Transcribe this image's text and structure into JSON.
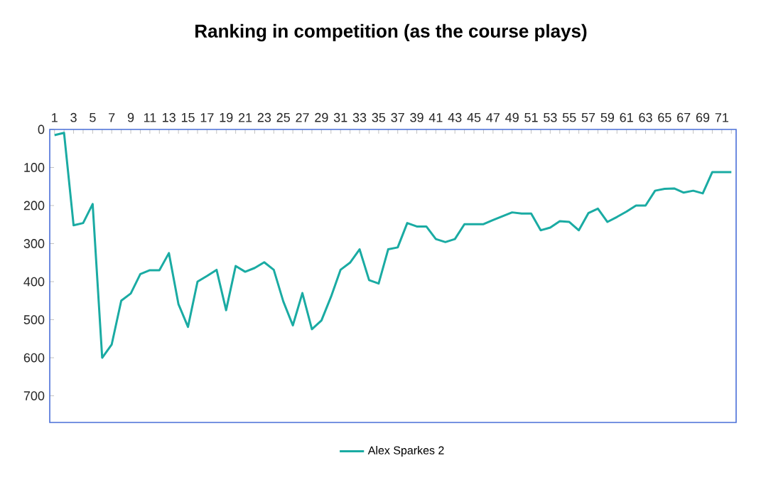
{
  "chart_data": {
    "type": "line",
    "title": "Ranking in competition (as the course plays)",
    "categories": [
      "1",
      null,
      "3",
      null,
      "5",
      null,
      "7",
      null,
      "9",
      null,
      "11",
      null,
      "13",
      null,
      "15",
      null,
      "17",
      null,
      "19",
      null,
      "21",
      null,
      "23",
      null,
      "25",
      null,
      "27",
      null,
      "29",
      null,
      "31",
      null,
      "33",
      null,
      "35",
      null,
      "37",
      null,
      "39",
      null,
      "41",
      null,
      "43",
      null,
      "45",
      null,
      "47",
      null,
      "49",
      null,
      "51",
      null,
      "53",
      null,
      "55",
      null,
      "57",
      null,
      "59",
      null,
      "61",
      null,
      "63",
      null,
      "65",
      null,
      "67",
      null,
      "69",
      null,
      "71",
      null
    ],
    "series": [
      {
        "name": "Alex Sparkes 2",
        "color": "#1aaba3",
        "values": [
          15,
          9,
          252,
          246,
          196,
          600,
          565,
          450,
          431,
          380,
          370,
          370,
          325,
          459,
          519,
          400,
          385,
          369,
          475,
          359,
          374,
          364,
          349,
          369,
          452,
          515,
          430,
          525,
          502,
          440,
          369,
          350,
          315,
          396,
          405,
          315,
          310,
          246,
          255,
          255,
          288,
          296,
          288,
          249,
          249,
          249,
          238,
          228,
          218,
          221,
          221,
          265,
          258,
          241,
          243,
          265,
          220,
          208,
          243,
          230,
          216,
          200,
          200,
          161,
          156,
          155,
          166,
          161,
          168,
          112,
          112,
          112
        ]
      }
    ],
    "ylim": [
      770,
      0
    ],
    "yticks": [
      0,
      100,
      200,
      300,
      400,
      500,
      600,
      700
    ],
    "grid": false,
    "legend": "bottom",
    "marker": "none",
    "line_style": "solid"
  }
}
